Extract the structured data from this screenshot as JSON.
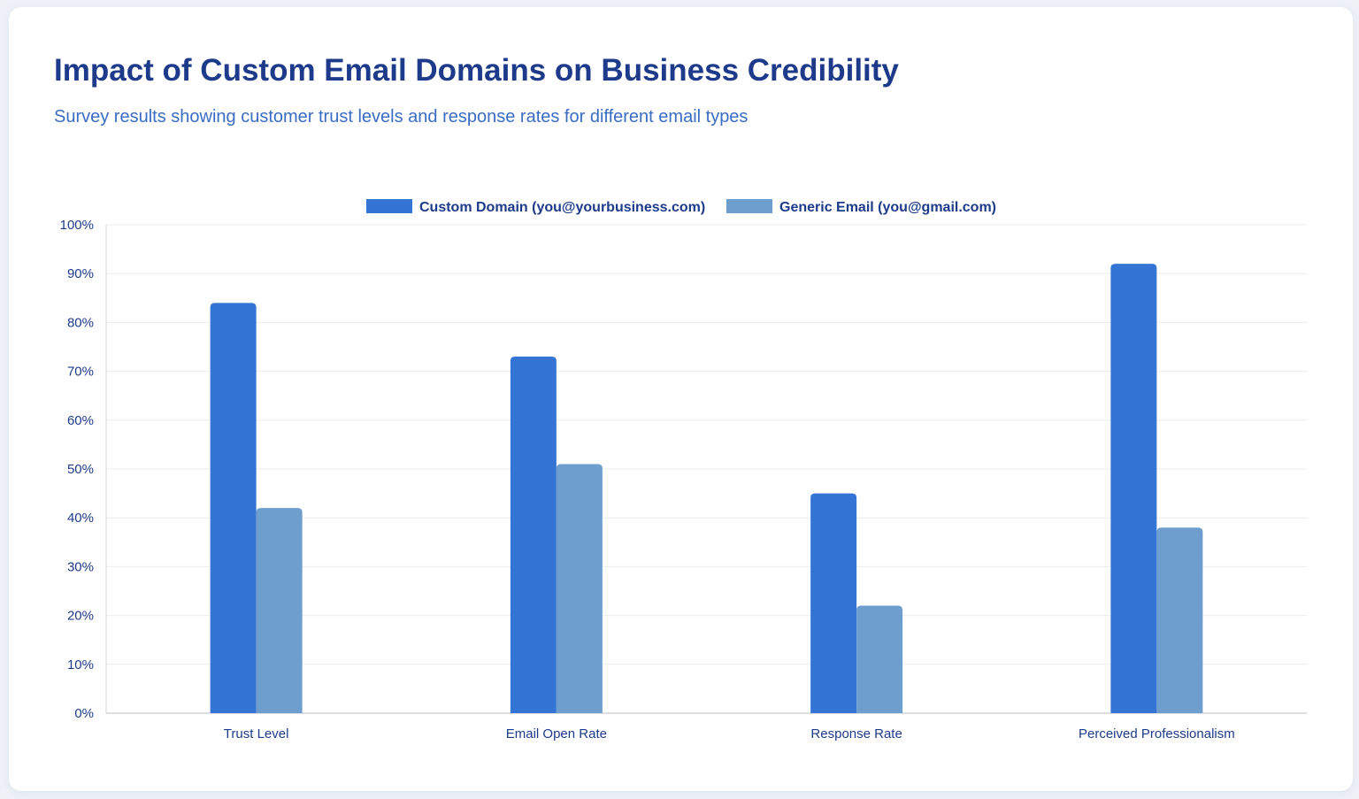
{
  "header": {
    "title": "Impact of Custom Email Domains on Business Credibility",
    "subtitle": "Survey results showing customer trust levels and response rates for different email types"
  },
  "colors": {
    "custom": "#3474d4",
    "generic": "#6d9ece",
    "grid": "#ececec",
    "axis": "#d0d4da"
  },
  "chart_data": {
    "type": "bar",
    "title": "Impact of Custom Email Domains on Business Credibility",
    "subtitle": "Survey results showing customer trust levels and response rates for different email types",
    "categories": [
      "Trust Level",
      "Email Open Rate",
      "Response Rate",
      "Perceived Professionalism"
    ],
    "series": [
      {
        "name": "Custom Domain (you@yourbusiness.com)",
        "values": [
          84,
          73,
          45,
          92
        ]
      },
      {
        "name": "Generic Email (you@gmail.com)",
        "values": [
          42,
          51,
          22,
          38
        ]
      }
    ],
    "ylim": [
      0,
      100
    ],
    "yticks": [
      "0%",
      "10%",
      "20%",
      "30%",
      "40%",
      "50%",
      "60%",
      "70%",
      "80%",
      "90%",
      "100%"
    ],
    "xlabel": "",
    "ylabel": "",
    "grid": true,
    "legend_position": "top-center"
  }
}
